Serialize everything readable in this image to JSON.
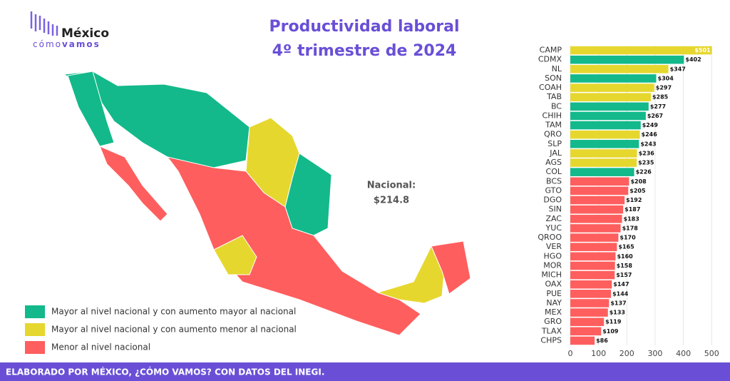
{
  "logo": {
    "name": "México",
    "word1": "cómo",
    "word2": "vamos"
  },
  "footer": "ELABORADO POR MÉXICO, ¿CÓMO VAMOS? CON DATOS DEL INEGI.",
  "legend": [
    {
      "label": "Mayor al nivel nacional y con aumento mayor al nacional",
      "color": "#13b98a"
    },
    {
      "label": "Mayor al nivel nacional y con aumento menor al nacional",
      "color": "#e6d72f"
    },
    {
      "label": "Menor al nivel nacional",
      "color": "#ff5e5e"
    }
  ],
  "annotation": "Nacional:",
  "annotation_value": "$214.8",
  "chart_data": {
    "type": "bar",
    "orientation": "horizontal",
    "title": "Productividad laboral",
    "subtitle": "4º trimestre de 2024",
    "categories": [
      "CAMP",
      "CDMX",
      "NL",
      "SON",
      "COAH",
      "TAB",
      "BC",
      "CHIH",
      "TAM",
      "QRO",
      "SLP",
      "JAL",
      "AGS",
      "COL",
      "BCS",
      "GTO",
      "DGO",
      "SIN",
      "ZAC",
      "YUC",
      "QROO",
      "VER",
      "HGO",
      "MOR",
      "MICH",
      "OAX",
      "PUE",
      "NAY",
      "MEX",
      "GRO",
      "TLAX",
      "CHPS"
    ],
    "values": [
      501,
      402,
      347,
      304,
      297,
      285,
      277,
      267,
      249,
      246,
      243,
      236,
      235,
      226,
      208,
      205,
      192,
      187,
      183,
      178,
      170,
      165,
      160,
      158,
      157,
      147,
      144,
      137,
      133,
      119,
      109,
      86
    ],
    "value_labels": [
      "$501",
      "$402",
      "$347",
      "$304",
      "$297",
      "$285",
      "$277",
      "$267",
      "$249",
      "$246",
      "$243",
      "$236",
      "$235",
      "$226",
      "$208",
      "$205",
      "$192",
      "$187",
      "$183",
      "$178",
      "$170",
      "$165",
      "$160",
      "$158",
      "$157",
      "$147",
      "$144",
      "$137",
      "$133",
      "$119",
      "$109",
      "$86"
    ],
    "colors": [
      "#e6d72f",
      "#13b98a",
      "#e6d72f",
      "#13b98a",
      "#e6d72f",
      "#e6d72f",
      "#13b98a",
      "#13b98a",
      "#13b98a",
      "#e6d72f",
      "#13b98a",
      "#e6d72f",
      "#e6d72f",
      "#13b98a",
      "#ff5e5e",
      "#ff5e5e",
      "#ff5e5e",
      "#ff5e5e",
      "#ff5e5e",
      "#ff5e5e",
      "#ff5e5e",
      "#ff5e5e",
      "#ff5e5e",
      "#ff5e5e",
      "#ff5e5e",
      "#ff5e5e",
      "#ff5e5e",
      "#ff5e5e",
      "#ff5e5e",
      "#ff5e5e",
      "#ff5e5e",
      "#ff5e5e"
    ],
    "xlim": [
      0,
      512
    ],
    "xticks": [
      0,
      100,
      200,
      300,
      400,
      500
    ],
    "grid": true
  }
}
